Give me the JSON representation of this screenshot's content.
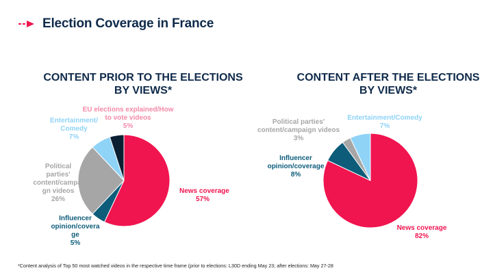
{
  "header": {
    "title": "Election Coverage in France"
  },
  "colors": {
    "news": "#f0144f",
    "influencer": "#0d5c7a",
    "political": "#a6a6a6",
    "entertainment": "#8fd3f7",
    "eu": "#0b1f33",
    "title": "#0f2a4a"
  },
  "footnote": "*Content analysis of Top 50 most watched videos in the respective time frame (prior to elections: L30D ending May 23;  after elections: May 27-28",
  "chart_data": [
    {
      "type": "pie",
      "title": "CONTENT PRIOR TO THE ELECTIONS BY VIEWS*",
      "title_lines": [
        "CONTENT PRIOR TO THE ELECTIONS",
        "BY VIEWS*"
      ],
      "slices": [
        {
          "label": "News coverage",
          "label_lines": [
            "News coverage"
          ],
          "value": 57,
          "value_label": "57%",
          "color": "#f0144f"
        },
        {
          "label": "Influencer opinion/coverage",
          "label_lines": [
            "Influencer",
            "opinion/covera",
            "ge"
          ],
          "value": 5,
          "value_label": "5%",
          "color": "#0d5c7a"
        },
        {
          "label": "Political parties' content/campaign videos",
          "label_lines": [
            "Political",
            "parties'",
            "content/campai",
            "gn videos"
          ],
          "value": 26,
          "value_label": "26%",
          "color": "#a6a6a6"
        },
        {
          "label": "Entertainment/Comedy",
          "label_lines": [
            "Entertainment/",
            "Comedy"
          ],
          "value": 7,
          "value_label": "7%",
          "color": "#8fd3f7"
        },
        {
          "label": "EU elections explained/How to vote videos",
          "label_lines": [
            "EU elections explained/How",
            "to vote videos"
          ],
          "value": 5,
          "value_label": "5%",
          "color": "#0b1f33"
        }
      ]
    },
    {
      "type": "pie",
      "title": "CONTENT AFTER THE ELECTIONS BY VIEWS*",
      "title_lines": [
        "CONTENT AFTER THE ELECTIONS",
        "BY VIEWS*"
      ],
      "slices": [
        {
          "label": "News coverage",
          "label_lines": [
            "News coverage"
          ],
          "value": 82,
          "value_label": "82%",
          "color": "#f0144f"
        },
        {
          "label": "Influencer opinion/coverage",
          "label_lines": [
            "Influencer",
            "opinion/coverage"
          ],
          "value": 8,
          "value_label": "8%",
          "color": "#0d5c7a"
        },
        {
          "label": "Political parties' content/campaign videos",
          "label_lines": [
            "Political parties'",
            "content/campaign videos"
          ],
          "value": 3,
          "value_label": "3%",
          "color": "#a6a6a6"
        },
        {
          "label": "Entertainment/Comedy",
          "label_lines": [
            "Entertainment/Comedy"
          ],
          "value": 7,
          "value_label": "7%",
          "color": "#8fd3f7"
        }
      ]
    }
  ]
}
